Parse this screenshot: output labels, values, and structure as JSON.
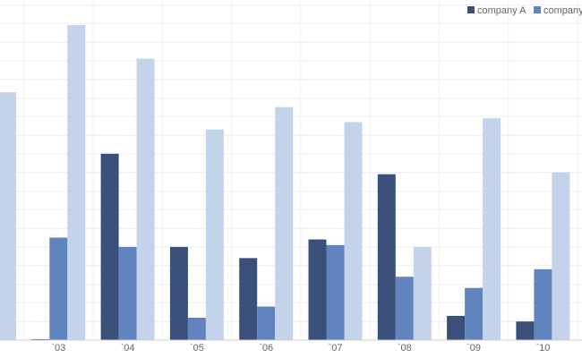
{
  "chart_data": {
    "type": "bar",
    "categories": [
      null,
      "`03",
      "`04",
      "`05",
      "`06",
      "`07",
      "`08",
      "`09",
      "`10"
    ],
    "series": [
      {
        "name": "company A",
        "color": "#3a4f7a",
        "values": [
          null,
          0.05,
          10.0,
          5.0,
          4.4,
          5.4,
          8.9,
          1.3,
          1.0
        ]
      },
      {
        "name": "company B",
        "color": "#6184bf",
        "values": [
          null,
          5.5,
          5.0,
          1.2,
          1.8,
          5.1,
          3.4,
          2.8,
          3.8
        ]
      },
      {
        "color": "#c3d3ea",
        "values": [
          13.3,
          16.9,
          15.1,
          11.3,
          12.5,
          11.7,
          5.0,
          11.9,
          9.0
        ]
      }
    ],
    "ylim": [
      0,
      17
    ],
    "grid": true,
    "legend": "top-right"
  }
}
